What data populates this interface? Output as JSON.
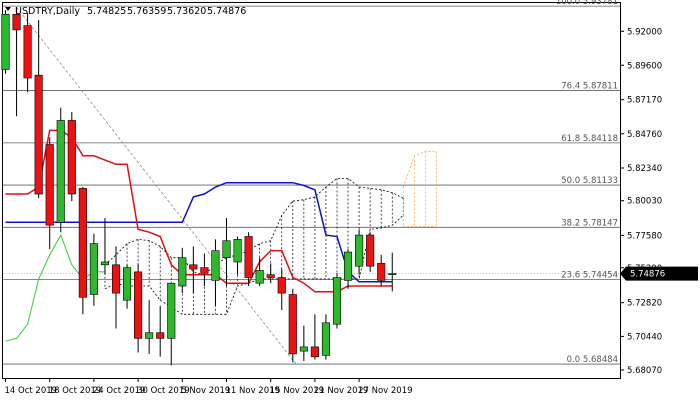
{
  "header": {
    "symbol_line": "USDTRY,Daily",
    "open": "5.74825",
    "high": "5.76359",
    "low": "5.73620",
    "close": "5.74876"
  },
  "current_price_label": "5.74876",
  "colors": {
    "bull": "#2db82d",
    "bear": "#ee1111",
    "tenkan": "#e01010",
    "kijun": "#1010d0",
    "chikou": "#33cc33",
    "cloud": "#000000",
    "future_cloud": "#f0a040",
    "fib": "#606060",
    "price_tag": "#000000"
  },
  "fib_levels": [
    {
      "label": "100.0 5.93781",
      "value": 5.93781
    },
    {
      "label": "76.4 5.87811",
      "value": 5.87811
    },
    {
      "label": "61.8 5.84118",
      "value": 5.84118
    },
    {
      "label": "50.0 5.81133",
      "value": 5.81133
    },
    {
      "label": "38.2 5.78147",
      "value": 5.78147
    },
    {
      "label": "23.6 5.74454",
      "value": 5.74454
    },
    {
      "label": "0.0 5.68484",
      "value": 5.68484
    }
  ],
  "chart_data": {
    "type": "candlestick",
    "title": "USDTRY,Daily",
    "ylim": [
      5.675,
      5.94
    ],
    "y_ticks": [
      "5.92000",
      "5.89600",
      "5.87170",
      "5.84760",
      "5.82340",
      "5.80030",
      "5.77580",
      "5.75290",
      "5.72820",
      "5.70440",
      "5.68070"
    ],
    "y_tick_values": [
      5.92,
      5.896,
      5.8717,
      5.8476,
      5.8234,
      5.8003,
      5.7758,
      5.7529,
      5.7282,
      5.7044,
      5.6807
    ],
    "x_labels": [
      {
        "label": "14 Oct 2019",
        "index": 0
      },
      {
        "label": "18 Oct 2019",
        "index": 4
      },
      {
        "label": "24 Oct 2019",
        "index": 8
      },
      {
        "label": "30 Oct 2019",
        "index": 12
      },
      {
        "label": "5 Nov 2019",
        "index": 16
      },
      {
        "label": "11 Nov 2019",
        "index": 20
      },
      {
        "label": "15 Nov 2019",
        "index": 24
      },
      {
        "label": "21 Nov 2019",
        "index": 28
      },
      {
        "label": "27 Nov 2019",
        "index": 32
      }
    ],
    "candles": [
      {
        "o": 5.893,
        "h": 5.935,
        "l": 5.89,
        "c": 5.932
      },
      {
        "o": 5.932,
        "h": 5.937,
        "l": 5.86,
        "c": 5.921
      },
      {
        "o": 5.924,
        "h": 5.933,
        "l": 5.877,
        "c": 5.887
      },
      {
        "o": 5.889,
        "h": 5.928,
        "l": 5.802,
        "c": 5.805
      },
      {
        "o": 5.84,
        "h": 5.845,
        "l": 5.766,
        "c": 5.783
      },
      {
        "o": 5.785,
        "h": 5.866,
        "l": 5.778,
        "c": 5.857
      },
      {
        "o": 5.857,
        "h": 5.863,
        "l": 5.8,
        "c": 5.805
      },
      {
        "o": 5.809,
        "h": 5.81,
        "l": 5.72,
        "c": 5.732
      },
      {
        "o": 5.734,
        "h": 5.777,
        "l": 5.726,
        "c": 5.77
      },
      {
        "o": 5.755,
        "h": 5.788,
        "l": 5.748,
        "c": 5.757
      },
      {
        "o": 5.755,
        "h": 5.768,
        "l": 5.71,
        "c": 5.735
      },
      {
        "o": 5.73,
        "h": 5.755,
        "l": 5.724,
        "c": 5.753
      },
      {
        "o": 5.75,
        "h": 5.756,
        "l": 5.693,
        "c": 5.703
      },
      {
        "o": 5.703,
        "h": 5.73,
        "l": 5.692,
        "c": 5.707
      },
      {
        "o": 5.707,
        "h": 5.726,
        "l": 5.69,
        "c": 5.703
      },
      {
        "o": 5.703,
        "h": 5.742,
        "l": 5.684,
        "c": 5.742
      },
      {
        "o": 5.74,
        "h": 5.767,
        "l": 5.735,
        "c": 5.76
      },
      {
        "o": 5.755,
        "h": 5.768,
        "l": 5.735,
        "c": 5.752
      },
      {
        "o": 5.753,
        "h": 5.763,
        "l": 5.74,
        "c": 5.749
      },
      {
        "o": 5.744,
        "h": 5.773,
        "l": 5.726,
        "c": 5.765
      },
      {
        "o": 5.76,
        "h": 5.788,
        "l": 5.74,
        "c": 5.772
      },
      {
        "o": 5.757,
        "h": 5.775,
        "l": 5.748,
        "c": 5.773
      },
      {
        "o": 5.775,
        "h": 5.778,
        "l": 5.74,
        "c": 5.746
      },
      {
        "o": 5.742,
        "h": 5.76,
        "l": 5.74,
        "c": 5.751
      },
      {
        "o": 5.748,
        "h": 5.756,
        "l": 5.742,
        "c": 5.746
      },
      {
        "o": 5.746,
        "h": 5.752,
        "l": 5.723,
        "c": 5.735
      },
      {
        "o": 5.734,
        "h": 5.738,
        "l": 5.686,
        "c": 5.692
      },
      {
        "o": 5.694,
        "h": 5.712,
        "l": 5.687,
        "c": 5.697
      },
      {
        "o": 5.697,
        "h": 5.72,
        "l": 5.688,
        "c": 5.69
      },
      {
        "o": 5.691,
        "h": 5.72,
        "l": 5.688,
        "c": 5.714
      },
      {
        "o": 5.713,
        "h": 5.749,
        "l": 5.71,
        "c": 5.746
      },
      {
        "o": 5.744,
        "h": 5.766,
        "l": 5.738,
        "c": 5.764
      },
      {
        "o": 5.754,
        "h": 5.78,
        "l": 5.748,
        "c": 5.776
      },
      {
        "o": 5.776,
        "h": 5.778,
        "l": 5.75,
        "c": 5.754
      },
      {
        "o": 5.756,
        "h": 5.762,
        "l": 5.74,
        "c": 5.744
      },
      {
        "o": 5.748,
        "h": 5.7636,
        "l": 5.7362,
        "c": 5.7488
      }
    ],
    "tenkan": [
      {
        "i": 0,
        "v": 5.805
      },
      {
        "i": 2,
        "v": 5.805
      },
      {
        "i": 3,
        "v": 5.81
      },
      {
        "i": 4,
        "v": 5.85
      },
      {
        "i": 5,
        "v": 5.85
      },
      {
        "i": 6,
        "v": 5.845
      },
      {
        "i": 7,
        "v": 5.832
      },
      {
        "i": 8,
        "v": 5.832
      },
      {
        "i": 10,
        "v": 5.826
      },
      {
        "i": 11,
        "v": 5.826
      },
      {
        "i": 12,
        "v": 5.78
      },
      {
        "i": 13,
        "v": 5.778
      },
      {
        "i": 14,
        "v": 5.775
      },
      {
        "i": 15,
        "v": 5.755
      },
      {
        "i": 16,
        "v": 5.748
      },
      {
        "i": 19,
        "v": 5.748
      },
      {
        "i": 20,
        "v": 5.742
      },
      {
        "i": 22,
        "v": 5.742
      },
      {
        "i": 23,
        "v": 5.757
      },
      {
        "i": 24,
        "v": 5.765
      },
      {
        "i": 25,
        "v": 5.765
      },
      {
        "i": 26,
        "v": 5.746
      },
      {
        "i": 27,
        "v": 5.742
      },
      {
        "i": 28,
        "v": 5.736
      },
      {
        "i": 30,
        "v": 5.736
      },
      {
        "i": 31,
        "v": 5.74
      },
      {
        "i": 32,
        "v": 5.74
      },
      {
        "i": 35,
        "v": 5.74
      }
    ],
    "kijun": [
      {
        "i": 0,
        "v": 5.785
      },
      {
        "i": 16,
        "v": 5.785
      },
      {
        "i": 17,
        "v": 5.803
      },
      {
        "i": 18,
        "v": 5.805
      },
      {
        "i": 19,
        "v": 5.81
      },
      {
        "i": 20,
        "v": 5.813
      },
      {
        "i": 26,
        "v": 5.813
      },
      {
        "i": 27,
        "v": 5.811
      },
      {
        "i": 28,
        "v": 5.808
      },
      {
        "i": 29,
        "v": 5.776
      },
      {
        "i": 30,
        "v": 5.775
      },
      {
        "i": 31,
        "v": 5.75
      },
      {
        "i": 32,
        "v": 5.743
      },
      {
        "i": 35,
        "v": 5.743
      }
    ],
    "chikou": [
      {
        "i": 0,
        "v": 5.701
      },
      {
        "i": 1,
        "v": 5.703
      },
      {
        "i": 2,
        "v": 5.713
      },
      {
        "i": 3,
        "v": 5.745
      },
      {
        "i": 4,
        "v": 5.762
      },
      {
        "i": 5,
        "v": 5.776
      },
      {
        "i": 6,
        "v": 5.755
      },
      {
        "i": 7,
        "v": 5.745
      },
      {
        "i": 8,
        "v": 5.75
      },
      {
        "i": 9,
        "v": 5.75
      }
    ],
    "cloud_upper": [
      {
        "i": 9,
        "v": 5.755
      },
      {
        "i": 10,
        "v": 5.762
      },
      {
        "i": 11,
        "v": 5.77
      },
      {
        "i": 12,
        "v": 5.773
      },
      {
        "i": 13,
        "v": 5.772
      },
      {
        "i": 14,
        "v": 5.768
      },
      {
        "i": 15,
        "v": 5.76
      },
      {
        "i": 16,
        "v": 5.76
      },
      {
        "i": 17,
        "v": 5.75
      },
      {
        "i": 18,
        "v": 5.748
      },
      {
        "i": 19,
        "v": 5.755
      },
      {
        "i": 20,
        "v": 5.76
      },
      {
        "i": 21,
        "v": 5.762
      },
      {
        "i": 22,
        "v": 5.765
      },
      {
        "i": 23,
        "v": 5.77
      },
      {
        "i": 24,
        "v": 5.772
      },
      {
        "i": 25,
        "v": 5.79
      },
      {
        "i": 26,
        "v": 5.8
      },
      {
        "i": 27,
        "v": 5.801
      },
      {
        "i": 28,
        "v": 5.803
      },
      {
        "i": 29,
        "v": 5.81
      },
      {
        "i": 30,
        "v": 5.816
      },
      {
        "i": 31,
        "v": 5.816
      },
      {
        "i": 32,
        "v": 5.81
      },
      {
        "i": 33,
        "v": 5.809
      },
      {
        "i": 34,
        "v": 5.808
      },
      {
        "i": 35,
        "v": 5.806
      },
      {
        "i": 36,
        "v": 5.802
      }
    ],
    "cloud_lower": [
      {
        "i": 9,
        "v": 5.738
      },
      {
        "i": 10,
        "v": 5.742
      },
      {
        "i": 11,
        "v": 5.74
      },
      {
        "i": 12,
        "v": 5.74
      },
      {
        "i": 13,
        "v": 5.74
      },
      {
        "i": 14,
        "v": 5.73
      },
      {
        "i": 15,
        "v": 5.725
      },
      {
        "i": 16,
        "v": 5.72
      },
      {
        "i": 17,
        "v": 5.72
      },
      {
        "i": 18,
        "v": 5.72
      },
      {
        "i": 19,
        "v": 5.72
      },
      {
        "i": 20,
        "v": 5.72
      },
      {
        "i": 21,
        "v": 5.74
      },
      {
        "i": 22,
        "v": 5.742
      },
      {
        "i": 23,
        "v": 5.745
      },
      {
        "i": 24,
        "v": 5.745
      },
      {
        "i": 25,
        "v": 5.745
      },
      {
        "i": 26,
        "v": 5.745
      },
      {
        "i": 27,
        "v": 5.745
      },
      {
        "i": 28,
        "v": 5.745
      },
      {
        "i": 29,
        "v": 5.745
      },
      {
        "i": 30,
        "v": 5.745
      },
      {
        "i": 31,
        "v": 5.745
      },
      {
        "i": 32,
        "v": 5.745
      },
      {
        "i": 33,
        "v": 5.78
      },
      {
        "i": 34,
        "v": 5.781
      },
      {
        "i": 35,
        "v": 5.783
      },
      {
        "i": 36,
        "v": 5.79
      }
    ],
    "future_cloud_upper": [
      {
        "i": 36,
        "v": 5.81
      },
      {
        "i": 37,
        "v": 5.832
      },
      {
        "i": 38,
        "v": 5.835
      },
      {
        "i": 39,
        "v": 5.835
      }
    ],
    "future_cloud_lower": [
      {
        "i": 36,
        "v": 5.782
      },
      {
        "i": 37,
        "v": 5.782
      },
      {
        "i": 38,
        "v": 5.782
      },
      {
        "i": 39,
        "v": 5.782
      }
    ]
  }
}
